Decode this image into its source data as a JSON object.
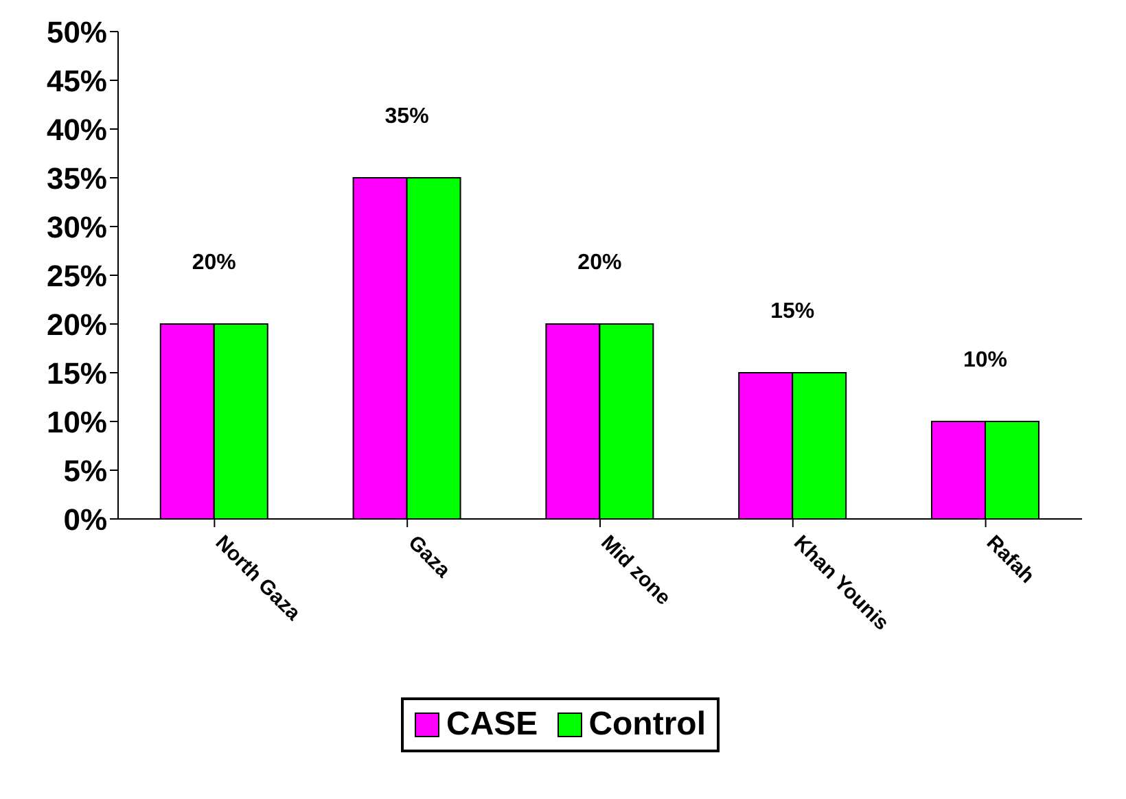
{
  "chart_data": {
    "type": "bar",
    "categories": [
      "North Gaza",
      "Gaza",
      "Mid zone",
      "Khan Younis",
      "Rafah"
    ],
    "series": [
      {
        "name": "CASE",
        "color": "#ff00ff",
        "values": [
          20,
          35,
          20,
          15,
          10
        ],
        "value_labels": [
          "20%",
          "35%",
          "20%",
          "15%",
          "10%"
        ]
      },
      {
        "name": "Control",
        "color": "#00ff00",
        "values": [
          20,
          35,
          20,
          15,
          10
        ]
      }
    ],
    "ylim": [
      0,
      50
    ],
    "yticks": [
      {
        "value": 0,
        "label": "0%"
      },
      {
        "value": 5,
        "label": "5%"
      },
      {
        "value": 10,
        "label": "10%"
      },
      {
        "value": 15,
        "label": "15%"
      },
      {
        "value": 20,
        "label": "20%"
      },
      {
        "value": 25,
        "label": "25%"
      },
      {
        "value": 30,
        "label": "30%"
      },
      {
        "value": 35,
        "label": "35%"
      },
      {
        "value": 40,
        "label": "40%"
      },
      {
        "value": 45,
        "label": "45%"
      },
      {
        "value": 50,
        "label": "50%"
      }
    ],
    "grid": false,
    "legend": "bottom"
  }
}
